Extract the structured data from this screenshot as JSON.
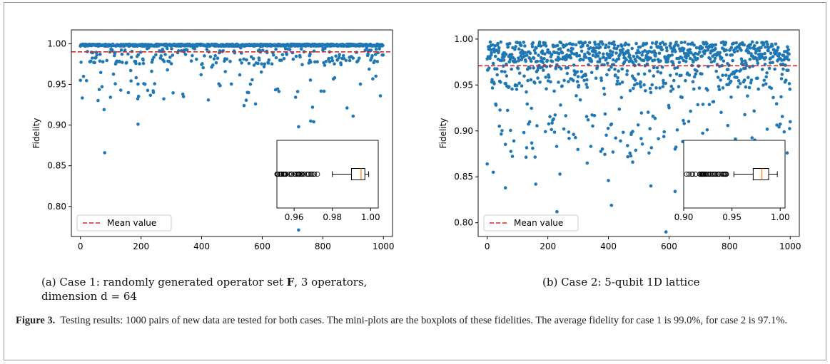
{
  "figure": {
    "label": "Figure 3.",
    "caption": "Testing results: 1000 pairs of new data are tested for both cases. The mini-plots are the boxplots of these fidelities. The average fidelity for case 1 is 99.0%, for case 2 is 97.1%."
  },
  "subcaptions": {
    "a": {
      "line1_pre": "(a) Case 1: randomly generated operator set",
      "line1_symbol": "F",
      "line1_post": ", 3 operators,",
      "line2": "dimension d = 64"
    },
    "b": {
      "text": "(b) Case 2: 5-qubit 1D lattice"
    }
  },
  "colors": {
    "points": "#1f77b4",
    "mean_line": "#d62728",
    "median": "#ff7f0e"
  },
  "chart_data": [
    {
      "type": "scatter",
      "name": "case1",
      "ylabel": "Fidelity",
      "xlabel": "",
      "xlim": [
        -30,
        1030
      ],
      "ylim": [
        0.763,
        1.017
      ],
      "xticks": [
        0,
        200,
        400,
        600,
        800,
        1000
      ],
      "yticks": [
        0.8,
        0.85,
        0.9,
        0.95,
        1.0
      ],
      "ytick_labels": [
        "0.80",
        "0.85",
        "0.90",
        "0.95",
        "1.00"
      ],
      "mean_value": 0.99,
      "n_points": 1000,
      "legend": {
        "label": "Mean value",
        "position": "lower-left"
      },
      "outliers": [
        {
          "x": 80,
          "y": 0.866
        },
        {
          "x": 190,
          "y": 0.901
        },
        {
          "x": 720,
          "y": 0.771
        },
        {
          "x": 720,
          "y": 0.898
        },
        {
          "x": 760,
          "y": 0.905
        },
        {
          "x": 770,
          "y": 0.904
        },
        {
          "x": 766,
          "y": 0.922
        },
        {
          "x": 78,
          "y": 0.919
        },
        {
          "x": 900,
          "y": 0.911
        },
        {
          "x": 880,
          "y": 0.921
        },
        {
          "x": 0,
          "y": 0.955
        },
        {
          "x": 990,
          "y": 0.936
        },
        {
          "x": 540,
          "y": 0.924
        },
        {
          "x": 578,
          "y": 0.926
        },
        {
          "x": 340,
          "y": 0.935
        }
      ],
      "inset": {
        "type": "boxplot",
        "xlim": [
          0.951,
          1.004
        ],
        "xticks": [
          0.96,
          0.98,
          1.0
        ],
        "xtick_labels": [
          "0.96",
          "0.98",
          "1.00"
        ],
        "q1": 0.99,
        "median": 0.995,
        "q3": 0.997,
        "whisker_low": 0.98,
        "whisker_high": 0.999,
        "fliers_range": [
          0.951,
          0.973
        ]
      }
    },
    {
      "type": "scatter",
      "name": "case2",
      "ylabel": "Fidelity",
      "xlabel": "",
      "xlim": [
        -30,
        1030
      ],
      "ylim": [
        0.785,
        1.01
      ],
      "xticks": [
        0,
        200,
        400,
        600,
        800,
        1000
      ],
      "yticks": [
        0.8,
        0.85,
        0.9,
        0.95,
        1.0
      ],
      "ytick_labels": [
        "0.80",
        "0.85",
        "0.90",
        "0.95",
        "1.00"
      ],
      "mean_value": 0.971,
      "n_points": 1000,
      "legend": {
        "label": "Mean value",
        "position": "lower-left"
      },
      "outliers": [
        {
          "x": 230,
          "y": 0.812
        },
        {
          "x": 410,
          "y": 0.819
        },
        {
          "x": 590,
          "y": 0.79
        },
        {
          "x": 60,
          "y": 0.838
        },
        {
          "x": 0,
          "y": 0.864
        },
        {
          "x": 20,
          "y": 0.855
        },
        {
          "x": 160,
          "y": 0.842
        },
        {
          "x": 400,
          "y": 0.846
        },
        {
          "x": 240,
          "y": 0.853
        },
        {
          "x": 540,
          "y": 0.84
        },
        {
          "x": 620,
          "y": 0.834
        },
        {
          "x": 1000,
          "y": 0.91
        },
        {
          "x": 990,
          "y": 0.876
        },
        {
          "x": 330,
          "y": 0.865
        },
        {
          "x": 480,
          "y": 0.866
        }
      ],
      "inset": {
        "type": "boxplot",
        "xlim": [
          0.9,
          1.005
        ],
        "xticks": [
          0.9,
          0.95,
          1.0
        ],
        "xtick_labels": [
          "0.90",
          "0.95",
          "1.00"
        ],
        "q1": 0.972,
        "median": 0.981,
        "q3": 0.988,
        "whisker_low": 0.952,
        "whisker_high": 0.997,
        "fliers_range": [
          0.901,
          0.945
        ]
      }
    }
  ]
}
